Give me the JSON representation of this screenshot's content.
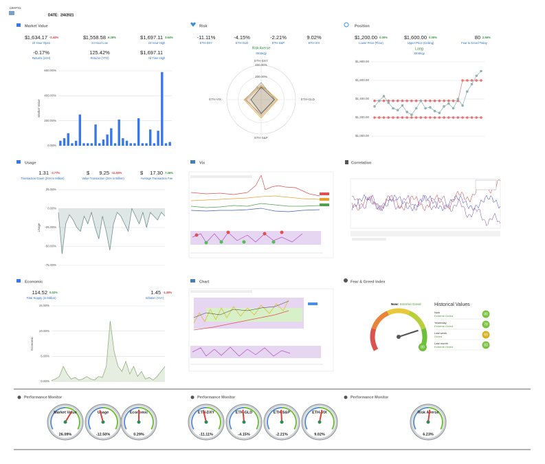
{
  "header": {
    "logo": "CRYPTO",
    "date_label": "DATE:",
    "date": "2/4/2021"
  },
  "market": {
    "title": "Market Value",
    "stats": [
      {
        "prefix": "$",
        "value": "1,634.17",
        "change": "-2.44%",
        "label": "24 Hour Open"
      },
      {
        "prefix": "$",
        "value": "1,558.58",
        "change": "6.28%",
        "label": "24 Hour Low"
      },
      {
        "prefix": "$",
        "value": "1,697.11",
        "change": "3.64%",
        "label": "24 Hour High"
      },
      {
        "value": "-0.17%",
        "label": "Returns (24H)"
      },
      {
        "value": "125.42%",
        "label": "Returns (YTD)"
      },
      {
        "prefix": "$",
        "value": "1,697.11",
        "label": "All Time High"
      }
    ],
    "chart": {
      "type": "bar",
      "ylabel": "Market Value",
      "color": "#3b78e7",
      "ylim": [
        0,
        600
      ],
      "yticks": [
        {
          "value": 0,
          "label": "0.00%"
        },
        {
          "value": 200,
          "label": "200.00%"
        },
        {
          "value": 400,
          "label": "400.00%"
        },
        {
          "value": 600,
          "label": "600.00%"
        }
      ],
      "values": [
        40,
        60,
        100,
        20,
        40,
        250,
        20,
        20,
        20,
        170,
        20,
        50,
        90,
        140,
        20,
        210,
        60,
        40,
        20,
        20,
        220,
        20,
        20,
        130,
        20,
        120,
        590,
        20,
        30
      ]
    }
  },
  "risk": {
    "title": "Risk",
    "stats": [
      {
        "value": "-11.11%",
        "label": "ETH-DXY"
      },
      {
        "value": "-4.15%",
        "label": "ETH-GLD"
      },
      {
        "value": "-2.21%",
        "label": "ETH-S&P"
      },
      {
        "value": "9.02%",
        "label": "ETH-VIX"
      }
    ],
    "strategy": "Risk Averse",
    "strategy_label": "Strategy",
    "radar": {
      "type": "radar",
      "axes": [
        "ETH-DXY",
        "ETH-GLD",
        "ETH-S&P",
        "ETH-VIX"
      ],
      "rlim": [
        -200,
        400
      ],
      "rticks": [
        {
          "value": 0,
          "label": "0.00%"
        },
        {
          "value": 200,
          "label": "200.00%"
        },
        {
          "value": 400,
          "label": "400.00%"
        }
      ],
      "series": [
        {
          "color": "#e8a53a",
          "values": [
            60,
            90,
            120,
            100
          ]
        },
        {
          "color": "#9a9a9a",
          "values": [
            100,
            40,
            60,
            80
          ]
        },
        {
          "color": "#c9a36b",
          "values": [
            40,
            70,
            90,
            60
          ]
        },
        {
          "color": "#555555",
          "values": [
            20,
            30,
            40,
            -20
          ]
        }
      ]
    }
  },
  "position": {
    "title": "Position",
    "stats": [
      {
        "prefix": "$",
        "value": "1,200.00",
        "change": "0.00%",
        "label": "Lower Price (Floor)"
      },
      {
        "prefix": "$",
        "value": "1,600.00",
        "change": "0.00%",
        "label": "Upper Price (Ceiling)"
      },
      {
        "value": "80",
        "change": "2.56%",
        "label": "Fear & Greed Today"
      }
    ],
    "strategy": "Long",
    "strategy_label": "Strategy",
    "chart": {
      "type": "line",
      "ylim": [
        1000,
        1800
      ],
      "yticks": [
        {
          "value": 1000,
          "label": "$1,000.00"
        },
        {
          "value": 1200,
          "label": "$1,200.00"
        },
        {
          "value": 1400,
          "label": "$1,400.00"
        },
        {
          "value": 1600,
          "label": "$1,600.00"
        },
        {
          "value": 1800,
          "label": "$1,800.00"
        }
      ],
      "series": [
        {
          "color": "#e57373",
          "values": [
            1380,
            1380,
            1380,
            1380,
            1380,
            1380,
            1380,
            1380,
            1380,
            1380,
            1380,
            1380,
            1380,
            1380,
            1380,
            1380,
            1380,
            1380,
            1380,
            1600,
            1600,
            1600,
            1600,
            1600
          ]
        },
        {
          "color": "#e57373",
          "values": [
            1200,
            1200,
            1200,
            1200,
            1200,
            1200,
            1200,
            1200,
            1200,
            1200,
            1200,
            1200,
            1200,
            1200,
            1200,
            1200,
            1200,
            1200,
            1200,
            1200,
            1200,
            1200,
            1200,
            1200
          ]
        },
        {
          "color": "#8fb3b0",
          "values": [
            1320,
            1380,
            1430,
            1360,
            1300,
            1280,
            1330,
            1260,
            1230,
            1300,
            1380,
            1300,
            1310,
            1270,
            1250,
            1320,
            1350,
            1300,
            1400,
            1330,
            1480,
            1560,
            1650,
            1700
          ]
        }
      ]
    }
  },
  "usage": {
    "title": "Usage",
    "stats": [
      {
        "value": "1.31",
        "change": "-3.77%",
        "label": "Transaction Count (24H in Million)"
      },
      {
        "prefix": "$",
        "value": "9.25",
        "change": "-11.55%",
        "label": "Value Transaction (24H in Billion)"
      },
      {
        "prefix": "$",
        "value": "17.30",
        "change": "7.36%",
        "label": "Average Transaction Fee"
      }
    ],
    "chart": {
      "type": "area",
      "ylabel": "Usage",
      "color": "#6f8f8f",
      "ylim": [
        -75,
        25
      ],
      "yticks": [
        {
          "value": 25,
          "label": "25.00%"
        },
        {
          "value": 0,
          "label": "0.00%"
        },
        {
          "value": -25,
          "label": "-25.00%"
        },
        {
          "value": -50,
          "label": "-50.00%"
        },
        {
          "value": -75,
          "label": "-75.00%"
        }
      ],
      "values": [
        -5,
        -60,
        -20,
        -8,
        -15,
        -25,
        -30,
        -10,
        -20,
        -5,
        -25,
        -40,
        -10,
        -30,
        -55,
        -20,
        -5,
        -10,
        -20,
        -30,
        0,
        -10,
        -20,
        -5,
        -25,
        -5,
        -10,
        -15,
        -5,
        -10
      ]
    }
  },
  "vix": {
    "title": "Vix"
  },
  "correlation": {
    "title": "Correlation"
  },
  "economic": {
    "title": "Economic",
    "stats": [
      {
        "value": "114.52",
        "change": "0.02%",
        "label": "Total Supply (in Million)"
      },
      {
        "value": "1.45",
        "change": "-1.38%",
        "label": "Inflation (YoY)"
      }
    ],
    "chart": {
      "type": "area",
      "ylabel": "Economic",
      "color": "#8fb07a",
      "ylim": [
        0,
        15
      ],
      "yticks": [
        {
          "value": 0,
          "label": "0.00%"
        },
        {
          "value": 5,
          "label": "5.00%"
        },
        {
          "value": 10,
          "label": "10.00%"
        },
        {
          "value": 15,
          "label": "15.00%"
        }
      ],
      "values": [
        0.2,
        0.5,
        1,
        3,
        1.5,
        0.5,
        0.8,
        0.3,
        0.5,
        1,
        0.5,
        0.3,
        1,
        0.8,
        3,
        12,
        6,
        3,
        2,
        4,
        1.5,
        3,
        1,
        2,
        0.5,
        0.8,
        0.3,
        1,
        2,
        3
      ]
    }
  },
  "chart_panel": {
    "title": "Chart"
  },
  "fear_greed": {
    "title": "Fear & Greed Index",
    "now_label": "Now:",
    "now_status": "Extreme Greed",
    "gauge_lim": [
      0,
      100
    ],
    "value": 80,
    "history_title": "Historical Values",
    "history": [
      {
        "when": "Now",
        "status": "Extreme Greed",
        "value": 80,
        "color": "#7cc242"
      },
      {
        "when": "Yesterday",
        "status": "Extreme Greed",
        "value": 78,
        "color": "#7cc242"
      },
      {
        "when": "Last week",
        "status": "Greed",
        "value": 69,
        "color": "#d4b21f"
      },
      {
        "when": "Last month",
        "status": "Extreme Greed",
        "value": 83,
        "color": "#7cc242"
      }
    ]
  },
  "performance": [
    {
      "title": "Performance Monitor",
      "lim": [
        -100,
        100
      ],
      "gauges": [
        {
          "name": "Market Value",
          "value": 26.09,
          "label": "26.09%"
        },
        {
          "name": "Usage",
          "value": -12.5,
          "label": "-12.50%"
        },
        {
          "name": "Economic",
          "value": 0.29,
          "label": "0.29%"
        }
      ]
    },
    {
      "title": "Performance Monitor",
      "lim": [
        -100,
        100
      ],
      "gauges": [
        {
          "name": "ETH-DXY",
          "value": -11.11,
          "label": "-11.11%"
        },
        {
          "name": "ETH-GLD",
          "value": -4.15,
          "label": "-4.15%"
        },
        {
          "name": "ETH-S&P",
          "value": -2.21,
          "label": "-2.21%"
        },
        {
          "name": "ETH-VIX",
          "value": 9.02,
          "label": "9.02%"
        }
      ]
    },
    {
      "title": "Performance Monitor",
      "lim": [
        -100,
        100
      ],
      "gauges": [
        {
          "name": "Risk Averse",
          "value": 6.23,
          "label": "6.23%"
        }
      ]
    }
  ]
}
